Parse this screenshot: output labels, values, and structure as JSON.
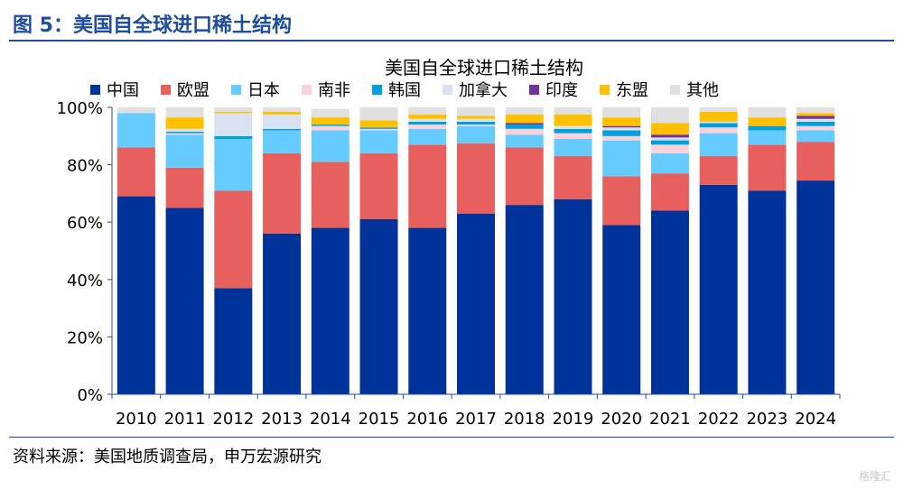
{
  "figure": {
    "title": "图 5：美国自全球进口稀土结构",
    "source": "资料来源：美国地质调查局，申万宏源研究",
    "watermark": "格隆汇"
  },
  "colors": {
    "frame": "#1f4e9c",
    "axis": "#1f4e9c",
    "text": "#000000"
  },
  "chart_data": {
    "type": "bar",
    "stacked": true,
    "title": "美国自全球进口稀土结构",
    "xlabel": "",
    "ylabel": "",
    "ylim": [
      0,
      100
    ],
    "y_ticks": [
      0,
      20,
      40,
      60,
      80,
      100
    ],
    "y_tick_labels": [
      "0%",
      "20%",
      "40%",
      "60%",
      "80%",
      "100%"
    ],
    "legend_position": "top",
    "categories": [
      "2010",
      "2011",
      "2012",
      "2013",
      "2014",
      "2015",
      "2016",
      "2017",
      "2018",
      "2019",
      "2020",
      "2021",
      "2022",
      "2023",
      "2024"
    ],
    "series": [
      {
        "name": "中国",
        "color": "#003399",
        "values": [
          69,
          65,
          37,
          56,
          58,
          61,
          58,
          63,
          66,
          68,
          59,
          64,
          73,
          71,
          74.5
        ]
      },
      {
        "name": "欧盟",
        "color": "#e8605e",
        "values": [
          17,
          14,
          34,
          28,
          23,
          23,
          29,
          24.5,
          20,
          15,
          17,
          13,
          10,
          16,
          13.5
        ]
      },
      {
        "name": "日本",
        "color": "#66ccff",
        "values": [
          12,
          11.5,
          18,
          8,
          11,
          8,
          5.5,
          6,
          4.5,
          6,
          12.5,
          7,
          8,
          5,
          4
        ]
      },
      {
        "name": "南非",
        "color": "#fad2dc",
        "values": [
          0,
          0.5,
          0,
          0,
          1.5,
          0.5,
          1.5,
          0.5,
          2,
          2,
          1.5,
          3,
          2,
          0,
          1.5
        ]
      },
      {
        "name": "韩国",
        "color": "#00a0dc",
        "values": [
          0,
          0.5,
          1,
          0.5,
          0.5,
          0.5,
          1,
          1,
          1.5,
          1.5,
          2,
          1.5,
          1.5,
          1.5,
          1.5
        ]
      },
      {
        "name": "加拿大",
        "color": "#d9e2f3",
        "values": [
          0,
          1,
          8,
          5,
          0,
          0,
          1,
          1,
          0,
          1,
          1,
          1,
          0.5,
          0,
          1
        ]
      },
      {
        "name": "印度",
        "color": "#7030a0",
        "values": [
          0,
          0,
          0,
          0,
          0,
          0,
          0,
          0,
          0.5,
          0,
          0.5,
          1,
          0,
          0,
          1
        ]
      },
      {
        "name": "东盟",
        "color": "#ffc000",
        "values": [
          0,
          4,
          0.5,
          1,
          2.5,
          2.5,
          1.5,
          1,
          3,
          4,
          3,
          4,
          3.5,
          3,
          1
        ]
      },
      {
        "name": "其他",
        "color": "#e0e0e0",
        "values": [
          2,
          3.5,
          1.5,
          1.5,
          3,
          4.5,
          2.5,
          3,
          2.5,
          2.5,
          3.5,
          5.5,
          1.5,
          3.5,
          2
        ]
      }
    ]
  }
}
